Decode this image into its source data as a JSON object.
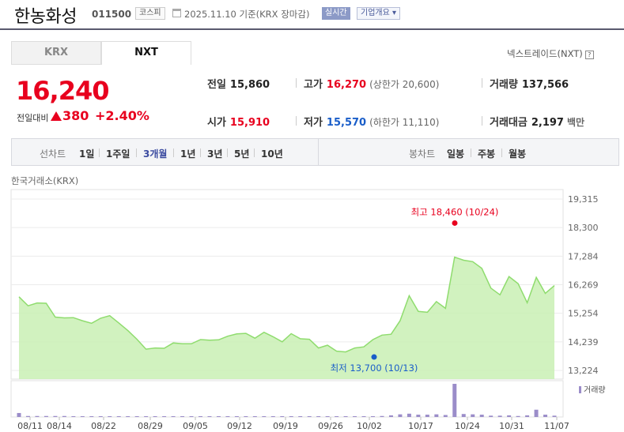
{
  "header": {
    "name": "한농화성",
    "code": "011500",
    "market": "코스피",
    "date": "2025.11.10  기준(KRX 장마감)",
    "realtime": "실시간",
    "corp_info": "기업개요"
  },
  "tabs": {
    "krx": "KRX",
    "nxt": "NXT"
  },
  "nxt_trade": "넥스트레이드(NXT)",
  "price": {
    "current": "16,240",
    "change_label": "전일대비",
    "change": "380",
    "change_pct": "+2.40%"
  },
  "stats": {
    "prev_close_label": "전일",
    "prev_close": "15,860",
    "high_label": "고가",
    "high": "16,270",
    "upper_limit": "(상한가 20,600)",
    "volume_label": "거래량",
    "volume": "137,566",
    "open_label": "시가",
    "open": "15,910",
    "low_label": "저가",
    "low": "15,570",
    "lower_limit": "(하한가 11,110)",
    "amount_label": "거래대금",
    "amount": "2,197",
    "amount_unit": "백만"
  },
  "periods": {
    "line_label": "선차트",
    "line": [
      "1일",
      "1주일",
      "3개월",
      "1년",
      "3년",
      "5년",
      "10년"
    ],
    "active": "3개월",
    "candle_label": "봉차트",
    "candle": [
      "일봉",
      "주봉",
      "월봉"
    ]
  },
  "exchange_label": "한국거래소(KRX)",
  "colors": {
    "up": "#e8001e",
    "down": "#1a5ec9",
    "line": "#8fdc6e",
    "fill": "#c9f0b4",
    "volume": "#9b8dc9"
  },
  "chart_data": {
    "type": "area",
    "y_ticks": [
      "19,315",
      "18,300",
      "17,284",
      "16,269",
      "15,254",
      "14,239",
      "13,224"
    ],
    "ylim": [
      13224,
      19315
    ],
    "x_tick_labels": [
      "08/11",
      "08/14",
      "08/22",
      "08/29",
      "09/05",
      "09/12",
      "09/19",
      "09/26",
      "10/02",
      "10/17",
      "10/24",
      "10/31",
      "11/07"
    ],
    "series": [
      {
        "values": [
          15840,
          15520,
          15620,
          15610,
          15120,
          15090,
          15100,
          14990,
          14900,
          15080,
          15170,
          14910,
          14640,
          14330,
          13980,
          14020,
          14010,
          14200,
          14170,
          14170,
          14320,
          14300,
          14310,
          14440,
          14520,
          14540,
          14370,
          14580,
          14420,
          14240,
          14530,
          14350,
          14330,
          14020,
          14120,
          13910,
          13880,
          14020,
          14060,
          14320,
          14480,
          14510,
          14990,
          15880,
          15320,
          15290,
          15670,
          15430,
          17250,
          17140,
          17090,
          16850,
          16150,
          15910,
          16560,
          16310,
          15630,
          16530,
          15960,
          16240
        ]
      }
    ],
    "high_label": "최고 18,460 (10/24)",
    "high_value": 18460,
    "low_label": "최저 13,700 (10/13)",
    "low_value": 13700,
    "volume_label": "거래량",
    "volume": [
      0.12,
      0.03,
      0.03,
      0.03,
      0.03,
      0.03,
      0.02,
      0.02,
      0.01,
      0.01,
      0.02,
      0.01,
      0.01,
      0.01,
      0.02,
      0.02,
      0.01,
      0.01,
      0.01,
      0.02,
      0.01,
      0.01,
      0.01,
      0.02,
      0.01,
      0.01,
      0.01,
      0.02,
      0.01,
      0.01,
      0.02,
      0.02,
      0.01,
      0.02,
      0.01,
      0.01,
      0.01,
      0.01,
      0.02,
      0.02,
      0.03,
      0.05,
      0.08,
      0.1,
      0.07,
      0.07,
      0.08,
      0.06,
      1.0,
      0.09,
      0.08,
      0.07,
      0.04,
      0.04,
      0.05,
      0.03,
      0.05,
      0.22,
      0.07,
      0.04
    ]
  }
}
